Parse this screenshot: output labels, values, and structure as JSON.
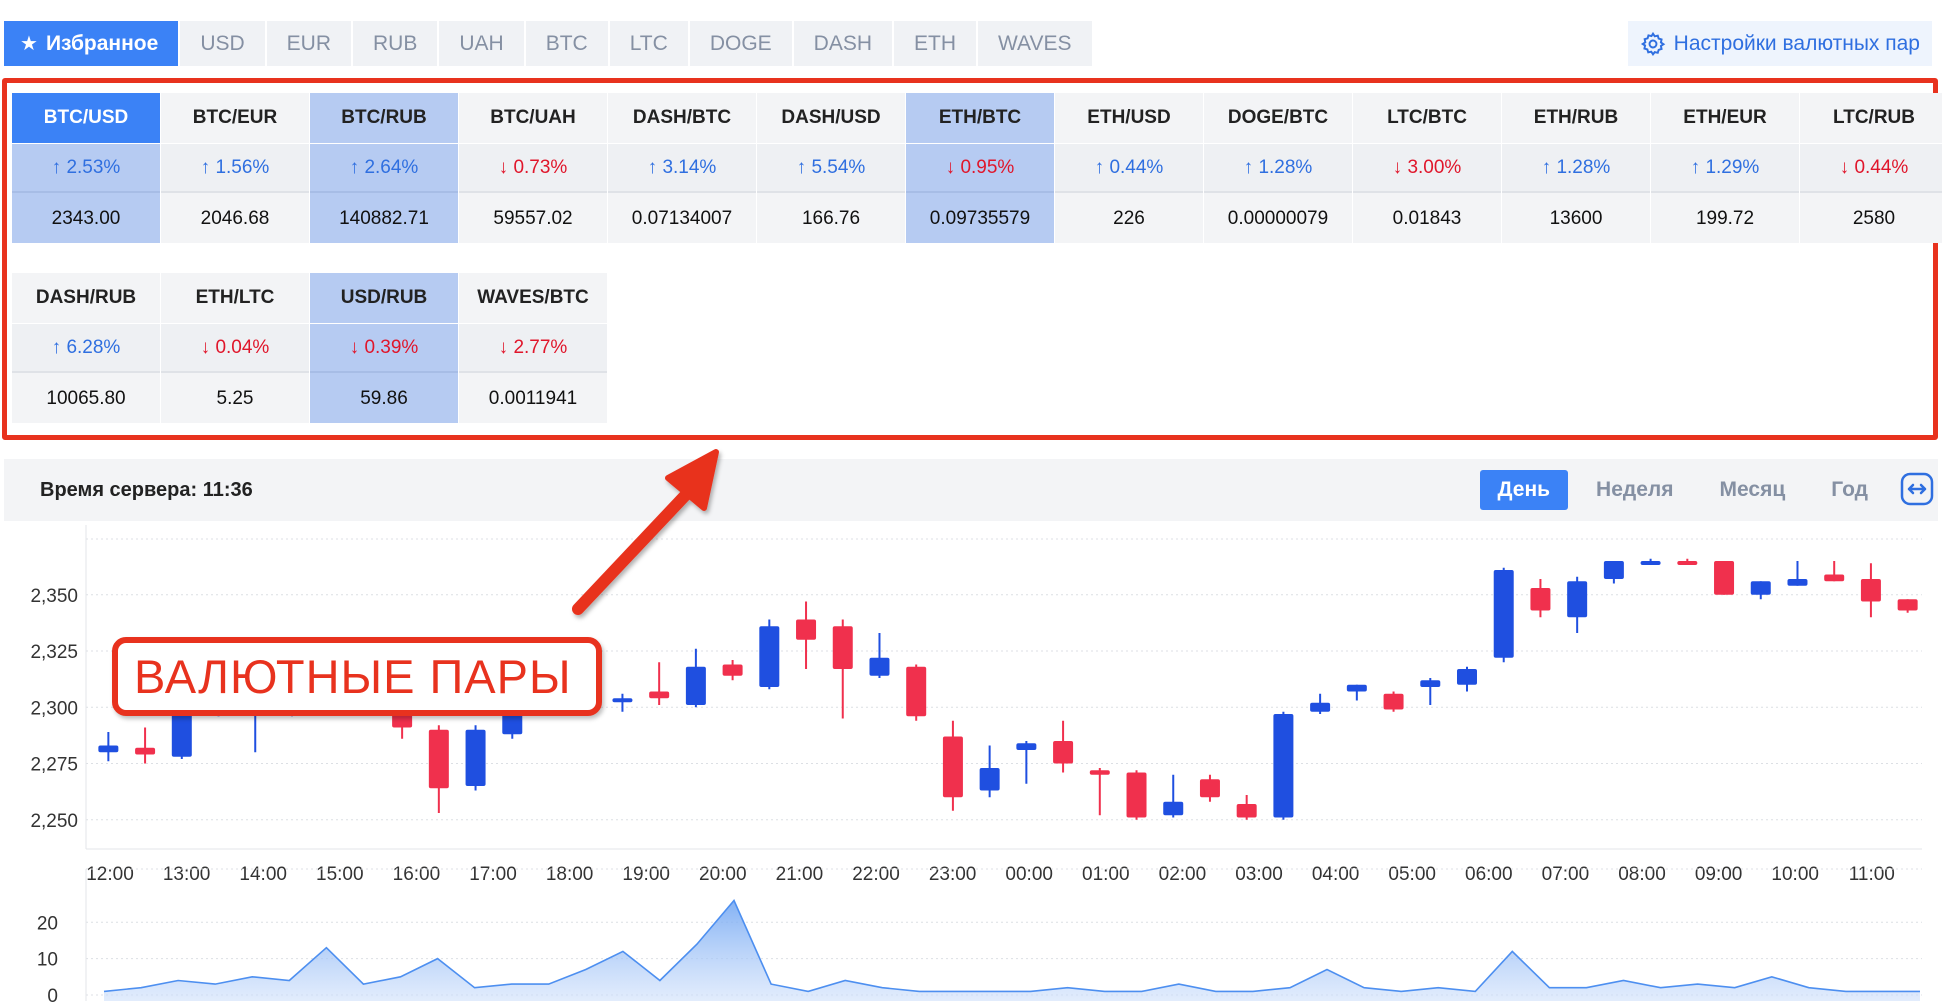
{
  "tabs": {
    "favorites_label": "Избранное",
    "items": [
      "USD",
      "EUR",
      "RUB",
      "UAH",
      "BTC",
      "LTC",
      "DOGE",
      "DASH",
      "ETH",
      "WAVES"
    ]
  },
  "settings_label": "Настройки валютных пар",
  "pairs": [
    {
      "name": "BTC/USD",
      "change": "2.53%",
      "dir": "up",
      "price": "2343.00",
      "selected": true,
      "primary": true
    },
    {
      "name": "BTC/EUR",
      "change": "1.56%",
      "dir": "up",
      "price": "2046.68",
      "selected": false
    },
    {
      "name": "BTC/RUB",
      "change": "2.64%",
      "dir": "up",
      "price": "140882.71",
      "selected": true
    },
    {
      "name": "BTC/UAH",
      "change": "0.73%",
      "dir": "down",
      "price": "59557.02",
      "selected": false
    },
    {
      "name": "DASH/BTC",
      "change": "3.14%",
      "dir": "up",
      "price": "0.07134007",
      "selected": false
    },
    {
      "name": "DASH/USD",
      "change": "5.54%",
      "dir": "up",
      "price": "166.76",
      "selected": false
    },
    {
      "name": "ETH/BTC",
      "change": "0.95%",
      "dir": "down",
      "price": "0.09735579",
      "selected": true
    },
    {
      "name": "ETH/USD",
      "change": "0.44%",
      "dir": "up",
      "price": "226",
      "selected": false
    },
    {
      "name": "DOGE/BTC",
      "change": "1.28%",
      "dir": "up",
      "price": "0.00000079",
      "selected": false
    },
    {
      "name": "LTC/BTC",
      "change": "3.00%",
      "dir": "down",
      "price": "0.01843",
      "selected": false
    },
    {
      "name": "ETH/RUB",
      "change": "1.28%",
      "dir": "up",
      "price": "13600",
      "selected": false
    },
    {
      "name": "ETH/EUR",
      "change": "1.29%",
      "dir": "up",
      "price": "199.72",
      "selected": false
    },
    {
      "name": "LTC/RUB",
      "change": "0.44%",
      "dir": "down",
      "price": "2580",
      "selected": false
    },
    {
      "name": "DASH/RUB",
      "change": "6.28%",
      "dir": "up",
      "price": "10065.80",
      "selected": false
    },
    {
      "name": "ETH/LTC",
      "change": "0.04%",
      "dir": "down",
      "price": "5.25",
      "selected": false
    },
    {
      "name": "USD/RUB",
      "change": "0.39%",
      "dir": "down",
      "price": "59.86",
      "selected": true
    },
    {
      "name": "WAVES/BTC",
      "change": "2.77%",
      "dir": "down",
      "price": "0.0011941",
      "selected": false
    }
  ],
  "server_time_label": "Время сервера: 11:36",
  "periods": [
    {
      "label": "День",
      "active": true
    },
    {
      "label": "Неделя",
      "active": false
    },
    {
      "label": "Месяц",
      "active": false
    },
    {
      "label": "Год",
      "active": false
    }
  ],
  "callout_text": "ВАЛЮТНЫЕ ПАРЫ",
  "colors": {
    "up": "#2f6fe0",
    "down": "#e0162b",
    "accent": "#3b82f6",
    "highlight": "#e8321e"
  },
  "chart_data": [
    {
      "type": "candlestick",
      "y_ticks": [
        "2,250",
        "2,275",
        "2,300",
        "2,325",
        "2,350"
      ],
      "ylim": [
        2245,
        2365
      ],
      "x_ticks": [
        "12:00",
        "13:00",
        "14:00",
        "15:00",
        "16:00",
        "17:00",
        "18:00",
        "19:00",
        "20:00",
        "21:00",
        "22:00",
        "23:00",
        "00:00",
        "01:00",
        "02:00",
        "03:00",
        "04:00",
        "05:00",
        "06:00",
        "07:00",
        "08:00",
        "09:00",
        "10:00",
        "11:00"
      ],
      "candles": [
        [
          2280,
          2283,
          2276,
          2289
        ],
        [
          2282,
          2279,
          2275,
          2291
        ],
        [
          2278,
          2298,
          2277,
          2300
        ],
        [
          2298,
          2300,
          2296,
          2303
        ],
        [
          2300,
          2301,
          2280,
          2305
        ],
        [
          2301,
          2302,
          2296,
          2305
        ],
        [
          2302,
          2303,
          2298,
          2306
        ],
        [
          2303,
          2304,
          2300,
          2307
        ],
        [
          2300,
          2291,
          2286,
          2302
        ],
        [
          2290,
          2264,
          2253,
          2292
        ],
        [
          2265,
          2290,
          2263,
          2292
        ],
        [
          2288,
          2300,
          2286,
          2303
        ],
        [
          2301,
          2302,
          2298,
          2304
        ],
        [
          2303,
          2304,
          2300,
          2306
        ],
        [
          2303,
          2304,
          2298,
          2306
        ],
        [
          2307,
          2304,
          2301,
          2320
        ],
        [
          2301,
          2318,
          2300,
          2326
        ],
        [
          2319,
          2314,
          2312,
          2321
        ],
        [
          2309,
          2336,
          2308,
          2339
        ],
        [
          2339,
          2330,
          2317,
          2347
        ],
        [
          2336,
          2317,
          2295,
          2339
        ],
        [
          2314,
          2322,
          2313,
          2333
        ],
        [
          2318,
          2296,
          2294,
          2319
        ],
        [
          2287,
          2260,
          2254,
          2294
        ],
        [
          2263,
          2273,
          2260,
          2283
        ],
        [
          2281,
          2284,
          2266,
          2285
        ],
        [
          2285,
          2275,
          2271,
          2294
        ],
        [
          2272,
          2270,
          2252,
          2273
        ],
        [
          2271,
          2251,
          2250,
          2272
        ],
        [
          2252,
          2258,
          2251,
          2270
        ],
        [
          2268,
          2260,
          2258,
          2270
        ],
        [
          2257,
          2251,
          2250,
          2261
        ],
        [
          2251,
          2297,
          2250,
          2298
        ],
        [
          2298,
          2302,
          2297,
          2306
        ],
        [
          2307,
          2310,
          2303,
          2310
        ],
        [
          2306,
          2299,
          2298,
          2307
        ],
        [
          2309,
          2312,
          2301,
          2313
        ],
        [
          2310,
          2317,
          2307,
          2318
        ],
        [
          2322,
          2361,
          2320,
          2362
        ],
        [
          2353,
          2343,
          2340,
          2357
        ],
        [
          2340,
          2356,
          2333,
          2358
        ],
        [
          2357,
          2376,
          2355,
          2377
        ],
        [
          2368,
          2375,
          2366,
          2378
        ],
        [
          2372,
          2370,
          2366,
          2377
        ],
        [
          2374,
          2350,
          2350,
          2377
        ],
        [
          2350,
          2356,
          2348,
          2356
        ],
        [
          2354,
          2357,
          2354,
          2375
        ],
        [
          2359,
          2356,
          2356,
          2370
        ],
        [
          2357,
          2347,
          2340,
          2364
        ],
        [
          2348,
          2343,
          2342,
          2348
        ]
      ]
    },
    {
      "type": "area",
      "y_ticks": [
        "0",
        "10",
        "20"
      ],
      "ylim": [
        0,
        22
      ],
      "values": [
        1,
        2,
        4,
        3,
        5,
        4,
        13,
        3,
        5,
        10,
        2,
        3,
        3,
        7,
        12,
        4,
        14,
        26,
        3,
        1,
        4,
        2,
        1,
        1,
        1,
        1,
        2,
        1,
        1,
        3,
        1,
        1,
        2,
        7,
        2,
        1,
        2,
        1,
        12,
        2,
        2,
        4,
        2,
        3,
        2,
        5,
        2,
        1,
        1,
        1
      ]
    }
  ]
}
